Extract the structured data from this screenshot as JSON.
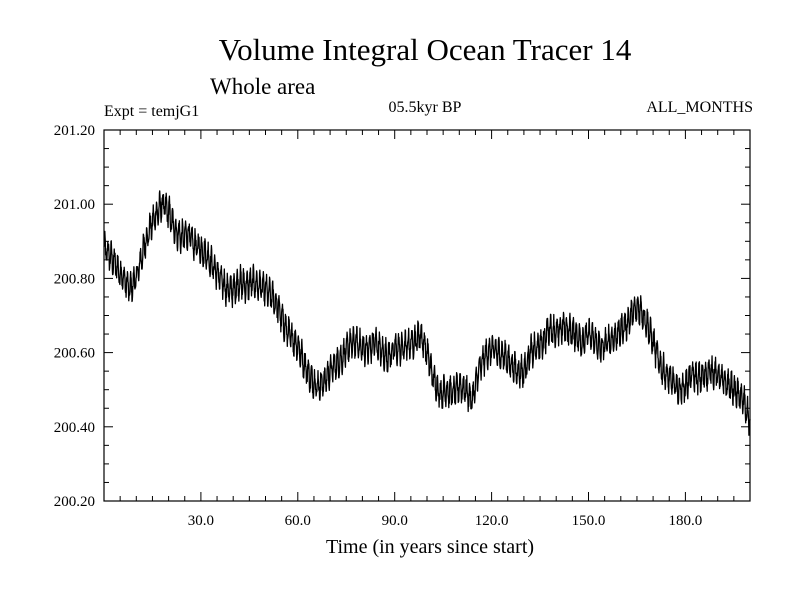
{
  "header": {
    "title": "Volume Integral Ocean Tracer 14",
    "subtitle": "Whole area",
    "experiment": "Expt = temjG1",
    "period": "05.5kyr BP",
    "months": "ALL_MONTHS"
  },
  "chart_data": {
    "type": "line",
    "title": "Volume Integral Ocean Tracer 14",
    "subtitle": "Whole area",
    "xlabel": "Time (in years since start)",
    "ylabel": "",
    "xlim": [
      0,
      200
    ],
    "ylim": [
      200.2,
      201.2
    ],
    "x_ticks": [
      30,
      60,
      90,
      120,
      150,
      180
    ],
    "x_tick_labels": [
      "30.0",
      "60.0",
      "90.0",
      "120.0",
      "150.0",
      "180.0"
    ],
    "y_ticks": [
      200.2,
      200.4,
      200.6,
      200.8,
      201.0,
      201.2
    ],
    "y_tick_labels": [
      "200.20",
      "200.40",
      "200.60",
      "200.80",
      "201.00",
      "201.20"
    ],
    "grid": false,
    "series": [
      {
        "name": "Volume Integral Ocean Tracer 14",
        "sampling": "monthly, 2400 points; seasonal cycle amplitude ~0.03, noise ~0.02",
        "trend_x": [
          0,
          2,
          4,
          6,
          8,
          10,
          12,
          14,
          16,
          18,
          20,
          22,
          24,
          26,
          28,
          30,
          32,
          34,
          36,
          38,
          40,
          42,
          44,
          46,
          48,
          50,
          52,
          54,
          56,
          58,
          60,
          62,
          64,
          66,
          68,
          70,
          72,
          74,
          76,
          78,
          80,
          82,
          84,
          86,
          88,
          90,
          92,
          94,
          96,
          98,
          100,
          102,
          104,
          106,
          108,
          110,
          112,
          114,
          116,
          118,
          120,
          122,
          124,
          126,
          128,
          130,
          132,
          134,
          136,
          138,
          140,
          142,
          144,
          146,
          148,
          150,
          152,
          154,
          156,
          158,
          160,
          162,
          164,
          166,
          168,
          170,
          172,
          174,
          176,
          178,
          180,
          182,
          184,
          186,
          188,
          190,
          192,
          194,
          196,
          198,
          200
        ],
        "trend_y": [
          200.88,
          200.86,
          200.83,
          200.8,
          200.77,
          200.8,
          200.87,
          200.93,
          200.97,
          201.0,
          200.98,
          200.93,
          200.91,
          200.92,
          200.89,
          200.88,
          200.86,
          200.83,
          200.8,
          200.77,
          200.77,
          200.79,
          200.78,
          200.79,
          200.78,
          200.77,
          200.75,
          200.72,
          200.67,
          200.64,
          200.62,
          200.57,
          200.53,
          200.51,
          200.52,
          200.55,
          200.57,
          200.59,
          200.62,
          200.63,
          200.61,
          200.61,
          200.63,
          200.6,
          200.59,
          200.61,
          200.61,
          200.62,
          200.63,
          200.65,
          200.6,
          200.53,
          200.49,
          200.5,
          200.49,
          200.51,
          200.5,
          200.47,
          200.55,
          200.59,
          200.61,
          200.6,
          200.59,
          200.57,
          200.55,
          200.55,
          200.6,
          200.61,
          200.63,
          200.67,
          200.65,
          200.67,
          200.66,
          200.65,
          200.63,
          200.65,
          200.63,
          200.61,
          200.63,
          200.64,
          200.66,
          200.68,
          200.71,
          200.72,
          200.68,
          200.63,
          200.57,
          200.54,
          200.52,
          200.5,
          200.51,
          200.54,
          200.53,
          200.54,
          200.55,
          200.54,
          200.52,
          200.51,
          200.49,
          200.47,
          200.41
        ]
      }
    ]
  }
}
